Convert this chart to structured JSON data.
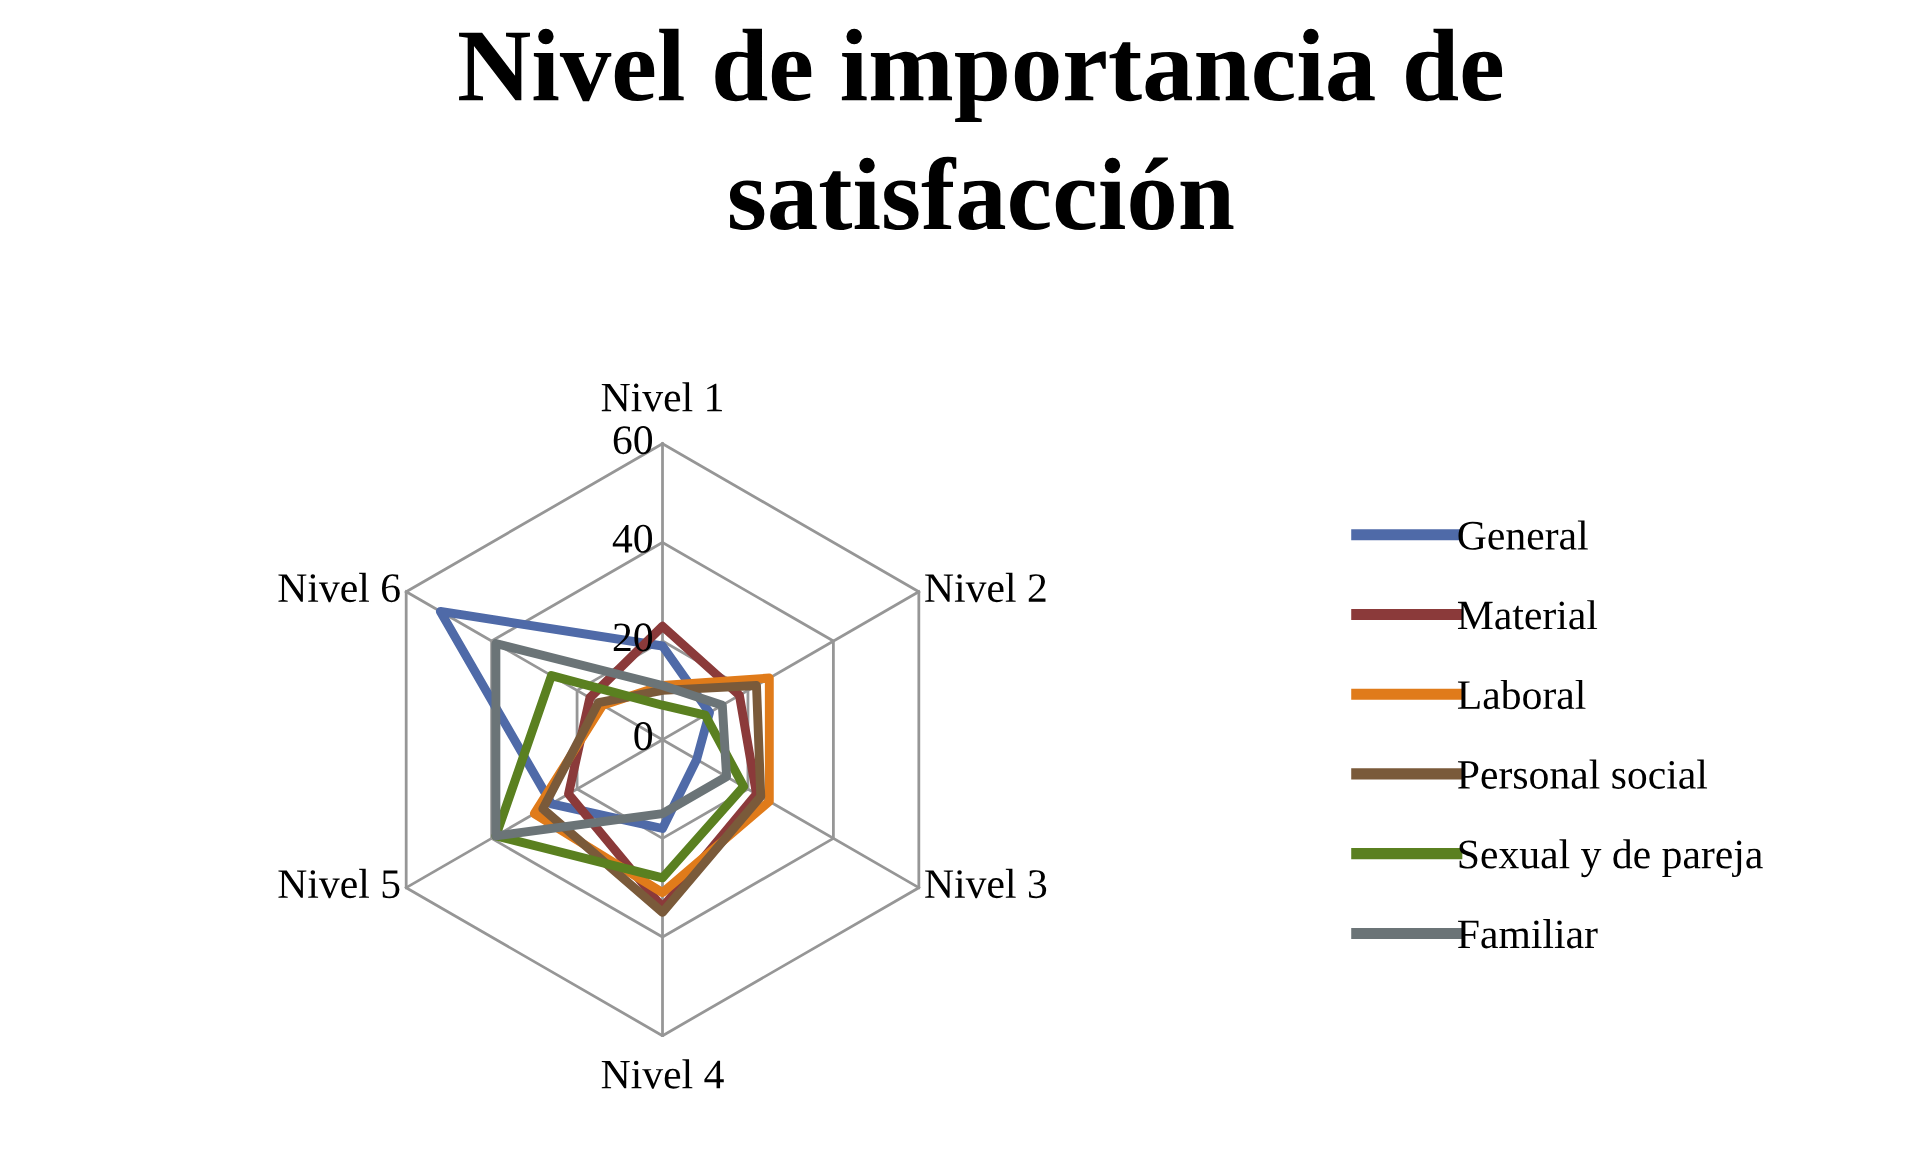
{
  "chart_data": {
    "type": "radar",
    "title": "Nivel de importancia de satisfacción",
    "categories": [
      "Nivel 1",
      "Nivel 2",
      "Nivel 3",
      "Nivel 4",
      "Nivel 5",
      "Nivel 6"
    ],
    "ylim": [
      0,
      60
    ],
    "yticks": [
      0,
      20,
      40,
      60
    ],
    "grid": true,
    "legend": "right",
    "series": [
      {
        "name": "General",
        "color": "#4f6aa8",
        "values": [
          19,
          11,
          8,
          18,
          26,
          52
        ]
      },
      {
        "name": "Material",
        "color": "#8b3a3a",
        "values": [
          23,
          18,
          22,
          34,
          22,
          17
        ]
      },
      {
        "name": "Laboral",
        "color": "#e07b1a",
        "values": [
          11,
          25,
          25,
          31,
          30,
          14
        ]
      },
      {
        "name": "Personal social",
        "color": "#7a5a3a",
        "values": [
          10,
          22,
          23,
          35,
          28,
          15
        ]
      },
      {
        "name": "Sexual y de pareja",
        "color": "#5a8020",
        "values": [
          7,
          10,
          19,
          28,
          39,
          26
        ]
      },
      {
        "name": "Familiar",
        "color": "#6b7477",
        "values": [
          11,
          14,
          15,
          15,
          39,
          39
        ]
      }
    ]
  }
}
